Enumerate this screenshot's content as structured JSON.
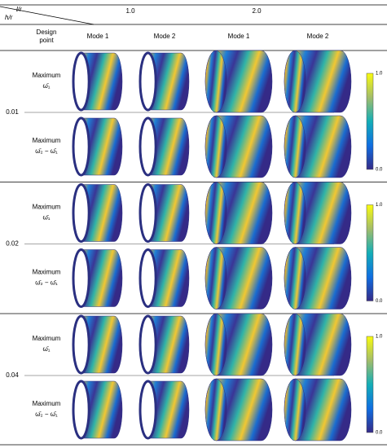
{
  "header": {
    "corner_top": "l/r",
    "corner_bottom": "h/r",
    "lr_values": [
      "1.0",
      "2.0"
    ],
    "design_point": [
      "Design",
      "point"
    ],
    "modes": [
      "Mode 1",
      "Mode 2",
      "Mode 1",
      "Mode 2"
    ]
  },
  "groups": [
    {
      "h_r": "0.01",
      "rows": [
        {
          "line1": "Maximum",
          "line2": "ω̄₁"
        },
        {
          "line1": "Maximum",
          "line2": "ω̄₂ − ω̄₁"
        }
      ],
      "colorbar": {
        "max": "1.0",
        "min": "0.0"
      }
    },
    {
      "h_r": "0.02",
      "rows": [
        {
          "line1": "Maximum",
          "line2": "ω̄₁"
        },
        {
          "line1": "Maximum",
          "line2": "ω̄₂ − ω̄₁"
        }
      ],
      "colorbar": {
        "max": "1.0",
        "min": "0.0"
      }
    },
    {
      "h_r": "0.04",
      "rows": [
        {
          "line1": "Maximum",
          "line2": "ω̄₁"
        },
        {
          "line1": "Maximum",
          "line2": "ω̄₂ − ω̄₁"
        }
      ],
      "colorbar": {
        "max": "1.0",
        "min": "0.0"
      }
    }
  ]
}
